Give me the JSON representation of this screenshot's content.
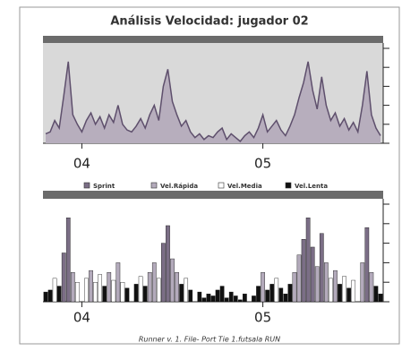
{
  "chart_data": [
    {
      "type": "area",
      "title": "Análisis Velocidad: jugador 02",
      "color": "#b7aebd",
      "line_color": "#5e4f6c",
      "background": "#d9d9d9",
      "values": [
        0.5,
        0.6,
        1.2,
        0.8,
        2.5,
        4.3,
        1.5,
        1.0,
        0.6,
        1.2,
        1.6,
        1.0,
        1.4,
        0.8,
        1.5,
        1.1,
        2.0,
        1.0,
        0.7,
        0.6,
        0.9,
        1.3,
        0.8,
        1.5,
        2.0,
        1.2,
        3.0,
        3.9,
        2.2,
        1.5,
        0.9,
        1.2,
        0.6,
        0.3,
        0.5,
        0.2,
        0.4,
        0.3,
        0.6,
        0.8,
        0.2,
        0.5,
        0.3,
        0.1,
        0.4,
        0.6,
        0.3,
        0.8,
        1.5,
        0.6,
        0.9,
        1.2,
        0.7,
        0.4,
        0.9,
        1.5,
        2.4,
        3.2,
        4.3,
        2.8,
        1.8,
        3.5,
        2.0,
        1.2,
        1.6,
        0.9,
        1.3,
        0.7,
        1.1,
        0.6,
        2.0,
        3.8,
        1.5,
        0.8,
        0.4
      ],
      "xlim": [
        0,
        74
      ],
      "xticks": [
        {
          "value": 8,
          "label": "04"
        },
        {
          "value": 48,
          "label": "05"
        }
      ],
      "ylim": [
        0,
        5
      ],
      "yticks": [
        0,
        1,
        2,
        3,
        4,
        5
      ]
    },
    {
      "type": "bar",
      "legend": [
        {
          "name": "Sprint",
          "color": "#7b6e86"
        },
        {
          "name": "Vel.Rápida",
          "color": "#b3aabb"
        },
        {
          "name": "Vel.Media",
          "color": "#ffffff"
        },
        {
          "name": "Vel.Lenta",
          "color": "#111111"
        }
      ],
      "values": [
        0.5,
        0.6,
        1.2,
        0.8,
        2.5,
        4.3,
        1.5,
        1.0,
        null,
        1.2,
        1.6,
        1.0,
        1.4,
        0.8,
        1.5,
        1.1,
        2.0,
        1.0,
        0.7,
        null,
        0.9,
        1.3,
        0.8,
        1.5,
        2.0,
        1.2,
        3.0,
        3.9,
        2.2,
        1.5,
        0.9,
        1.2,
        0.6,
        null,
        0.5,
        0.2,
        0.4,
        0.3,
        0.6,
        0.8,
        0.2,
        0.5,
        0.3,
        0.1,
        0.4,
        null,
        0.3,
        0.8,
        1.5,
        0.6,
        0.9,
        1.2,
        0.7,
        0.4,
        0.9,
        1.5,
        2.4,
        3.2,
        4.3,
        2.8,
        1.8,
        3.5,
        2.0,
        1.2,
        1.6,
        0.9,
        1.3,
        0.7,
        1.1,
        null,
        2.0,
        3.8,
        1.5,
        0.8,
        0.4
      ],
      "colors": [
        "#111111",
        "#111111",
        "#ffffff",
        "#111111",
        "#7b6e86",
        "#7b6e86",
        "#b3aabb",
        "#ffffff",
        null,
        "#ffffff",
        "#b3aabb",
        "#ffffff",
        "#ffffff",
        "#111111",
        "#b3aabb",
        "#ffffff",
        "#b3aabb",
        "#ffffff",
        "#111111",
        null,
        "#111111",
        "#ffffff",
        "#111111",
        "#b3aabb",
        "#b3aabb",
        "#ffffff",
        "#7b6e86",
        "#7b6e86",
        "#b3aabb",
        "#b3aabb",
        "#111111",
        "#ffffff",
        "#111111",
        null,
        "#111111",
        "#111111",
        "#111111",
        "#111111",
        "#111111",
        "#111111",
        "#111111",
        "#111111",
        "#111111",
        "#111111",
        "#111111",
        null,
        "#111111",
        "#111111",
        "#b3aabb",
        "#111111",
        "#111111",
        "#ffffff",
        "#111111",
        "#111111",
        "#111111",
        "#b3aabb",
        "#b3aabb",
        "#7b6e86",
        "#7b6e86",
        "#7b6e86",
        "#b3aabb",
        "#7b6e86",
        "#b3aabb",
        "#ffffff",
        "#b3aabb",
        "#111111",
        "#ffffff",
        "#111111",
        "#ffffff",
        null,
        "#b3aabb",
        "#7b6e86",
        "#b3aabb",
        "#111111",
        "#111111"
      ],
      "xlim": [
        0,
        74
      ],
      "xticks": [
        {
          "value": 8,
          "label": "04"
        },
        {
          "value": 48,
          "label": "05"
        }
      ],
      "ylim": [
        0,
        5
      ],
      "yticks": [
        0,
        1,
        2,
        3,
        4,
        5
      ],
      "footer": "Runner v. 1.      File- Port Tie 1.futsala RUN"
    }
  ]
}
